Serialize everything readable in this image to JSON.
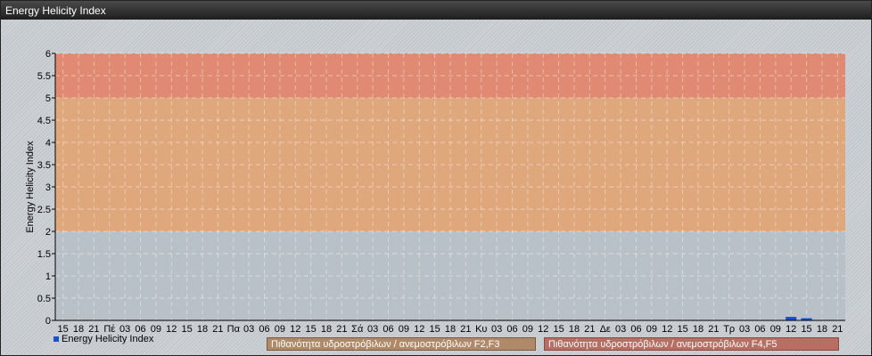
{
  "window": {
    "title": "Energy Helicity Index"
  },
  "chart_data": {
    "type": "bar",
    "title": "",
    "ylabel": "Energy Helicity Index",
    "xlabel": "",
    "ylim": [
      0,
      6
    ],
    "yticks": [
      "0",
      "0.5",
      "1",
      "1.5",
      "2",
      "2.5",
      "3",
      "3.5",
      "4",
      "4.5",
      "5",
      "5.5",
      "6"
    ],
    "grid": true,
    "legend_placement": "bottom-left",
    "categories": [
      "15",
      "18",
      "21",
      "Πέ",
      "03",
      "06",
      "09",
      "12",
      "15",
      "18",
      "21",
      "Πα",
      "03",
      "06",
      "09",
      "12",
      "15",
      "18",
      "21",
      "Σά",
      "03",
      "06",
      "09",
      "12",
      "15",
      "18",
      "21",
      "Κυ",
      "03",
      "06",
      "09",
      "12",
      "15",
      "18",
      "21",
      "Δε",
      "03",
      "06",
      "09",
      "12",
      "15",
      "18",
      "21",
      "Τρ",
      "03",
      "06",
      "09",
      "12",
      "15",
      "18",
      "21"
    ],
    "series": [
      {
        "name": "Energy Helicity Index",
        "color": "#1a4fd8",
        "values": [
          0.01,
          0.01,
          0.01,
          0.01,
          0.01,
          0.01,
          0.01,
          0.01,
          0.01,
          0.01,
          0.01,
          0.01,
          0.01,
          0.01,
          0.01,
          0.01,
          0.01,
          0.01,
          0.01,
          0.01,
          0.01,
          0.01,
          0.01,
          0.01,
          0.01,
          0.01,
          0.01,
          0.01,
          0.01,
          0.01,
          0.01,
          0.01,
          0.01,
          0.01,
          0.01,
          0.01,
          0.01,
          0.01,
          0.01,
          0.01,
          0.01,
          0.01,
          0.01,
          0.01,
          0.01,
          0.01,
          0.01,
          0.08,
          0.05,
          0.01,
          0.01
        ]
      }
    ],
    "bands": [
      {
        "from": 0,
        "to": 2,
        "color": "#b9c1c8",
        "label": ""
      },
      {
        "from": 2,
        "to": 5,
        "color": "#dea77c",
        "label": "Πιθανότητα υδροστρόβιλων / ανεμοστρόβιλων F2,F3"
      },
      {
        "from": 5,
        "to": 6,
        "color": "#e08a74",
        "label": "Πιθανότητα υδροστρόβιλων / ανεμοστρόβιλων F4,F5"
      }
    ]
  }
}
